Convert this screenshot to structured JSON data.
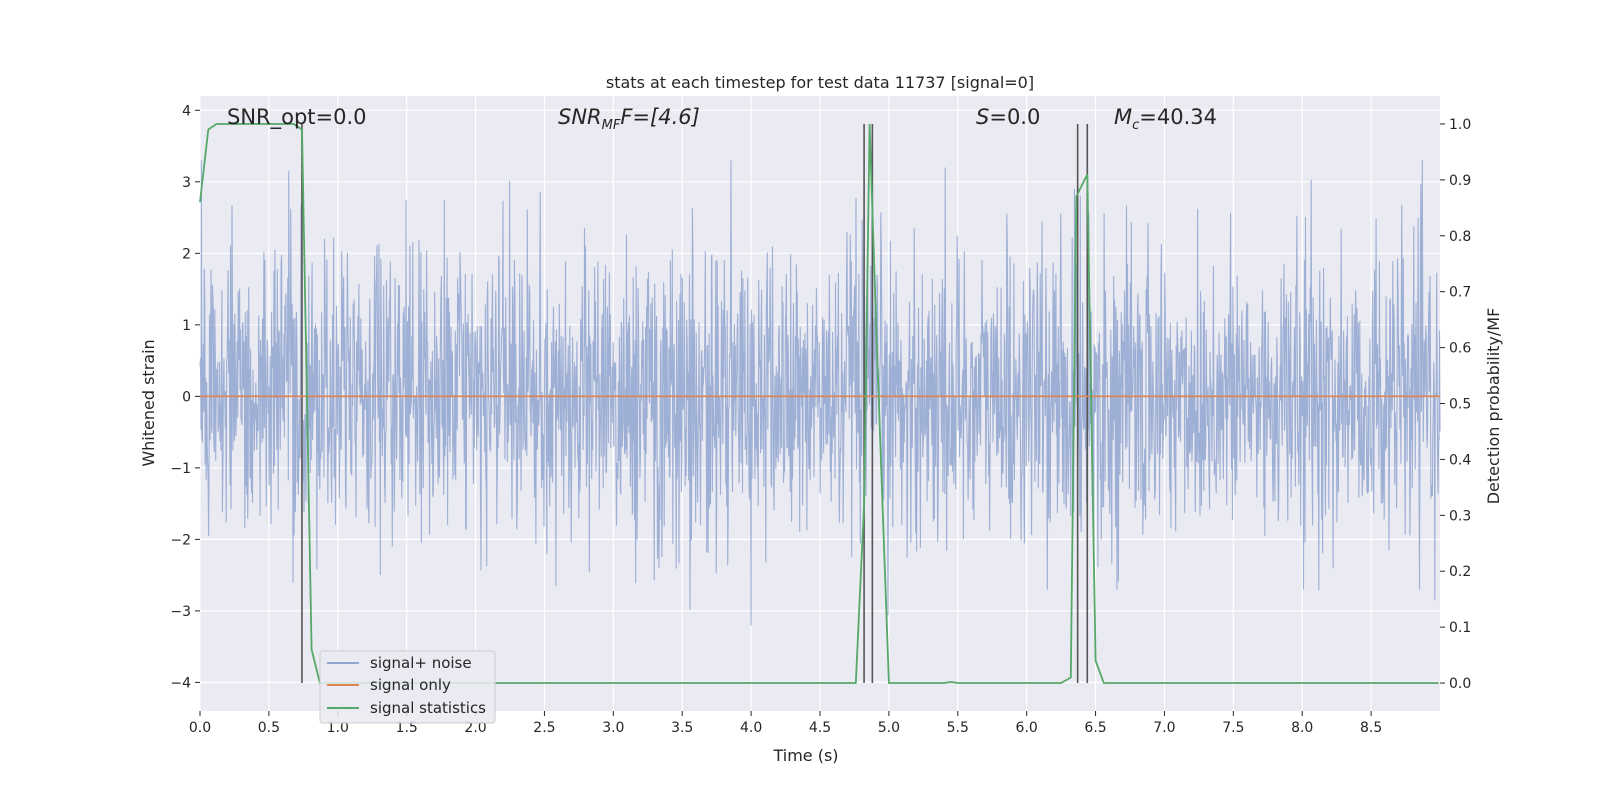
{
  "chart_data": {
    "type": "line",
    "title": "stats at each timestep for test data 11737 [signal=0]",
    "xlabel": "Time (s)",
    "ylabel": "Whitened strain",
    "y2label": "Detection probability/MF",
    "xlim": [
      0.0,
      9.0
    ],
    "ylim": [
      -4.4,
      4.2
    ],
    "y2lim": [
      -0.05,
      1.05
    ],
    "x_ticks": [
      "0.0",
      "0.5",
      "1.0",
      "1.5",
      "2.0",
      "2.5",
      "3.0",
      "3.5",
      "4.0",
      "4.5",
      "5.0",
      "5.5",
      "6.0",
      "6.5",
      "7.0",
      "7.5",
      "8.0",
      "8.5"
    ],
    "y_ticks": [
      "4",
      "3",
      "2",
      "1",
      "0",
      "−1",
      "−2",
      "−3",
      "−4"
    ],
    "y2_ticks": [
      "1.0",
      "0.9",
      "0.8",
      "0.7",
      "0.6",
      "0.5",
      "0.4",
      "0.3",
      "0.2",
      "0.1",
      "0.0"
    ],
    "grid": true,
    "legend_position": "lower-left",
    "annotations": {
      "snr_opt": "SNR_opt=0.0",
      "snr_mf_main": "SNR",
      "snr_mf_sub": "MF",
      "snr_mf_tail": "F=[4.6]",
      "s_main": "S",
      "s_tail": "=0.0",
      "mc_main": "M",
      "mc_sub": "c",
      "mc_tail": "=40.34"
    },
    "series": [
      {
        "name": "signal+ noise",
        "color": "#8fa5cf",
        "axis": "left",
        "description_values": "whitened noise, roughly within -3.5 to 3.3"
      },
      {
        "name": "signal only",
        "color": "#dd8452",
        "axis": "left",
        "x": [
          0.0,
          9.0
        ],
        "y": [
          0.0,
          0.0
        ]
      },
      {
        "name": "signal statistics",
        "color": "#55a868",
        "axis": "right",
        "x": [
          0.0,
          0.06,
          0.12,
          0.55,
          0.68,
          0.74,
          0.81,
          0.87,
          0.95,
          4.6,
          4.76,
          4.82,
          4.86,
          4.91,
          5.0,
          5.4,
          5.45,
          5.5,
          6.25,
          6.32,
          6.36,
          6.44,
          6.5,
          6.56,
          8.99
        ],
        "y": [
          0.86,
          0.99,
          1.0,
          1.0,
          1.0,
          0.99,
          0.06,
          0.0,
          0.0,
          0.0,
          0.0,
          0.32,
          1.0,
          0.62,
          0.0,
          0.0,
          0.002,
          0.0,
          0.0,
          0.01,
          0.87,
          0.91,
          0.04,
          0.0,
          0.0
        ]
      }
    ],
    "vertical_markers": [
      0.74,
      4.82,
      4.88,
      6.37,
      6.44
    ]
  }
}
